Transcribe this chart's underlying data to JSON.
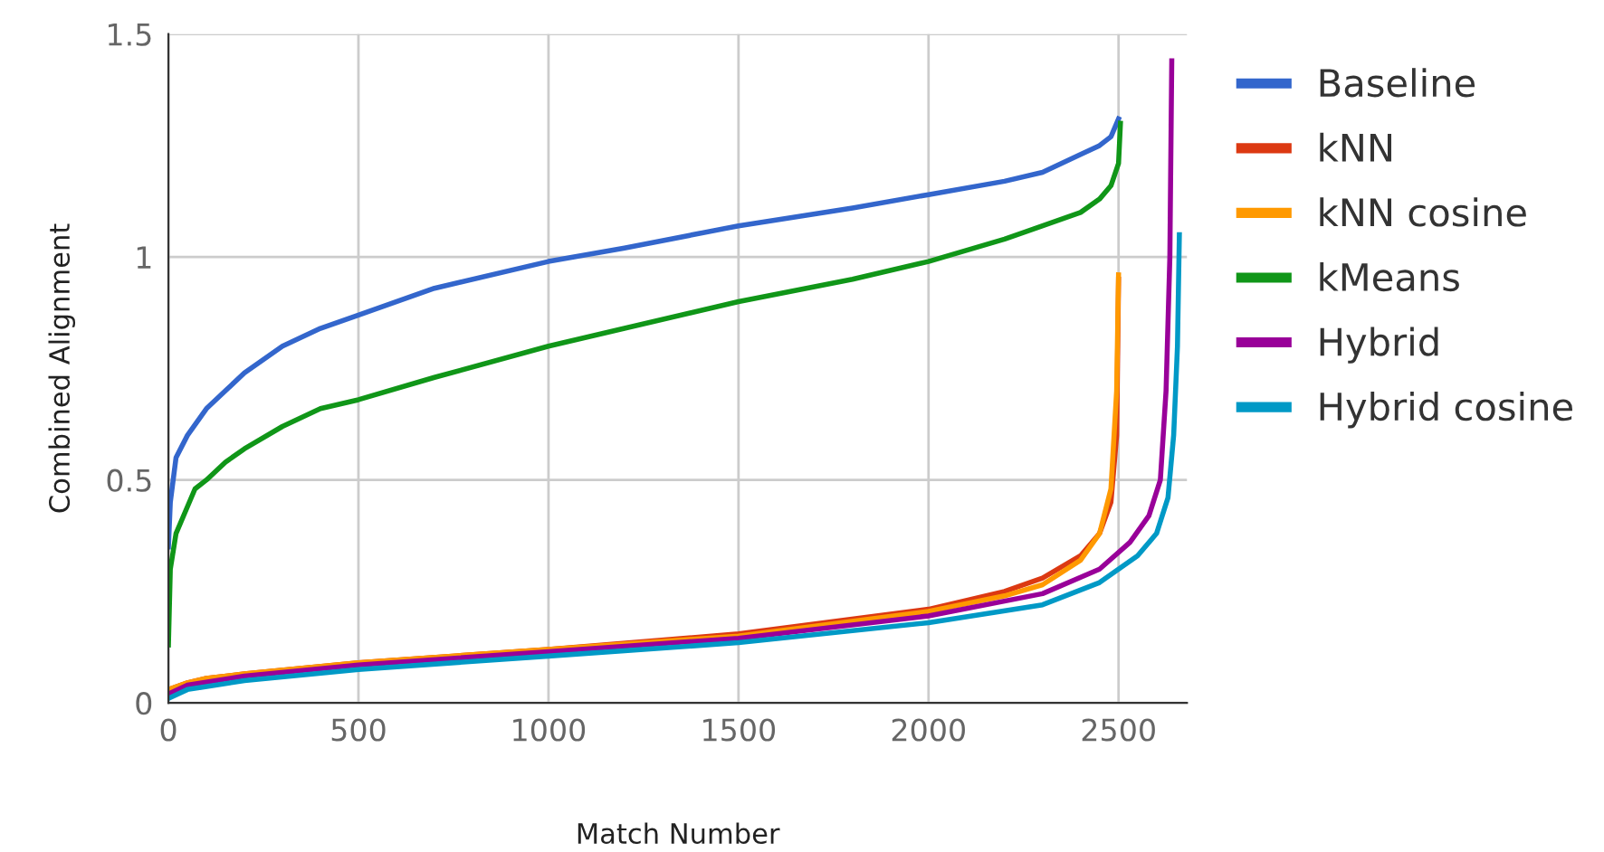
{
  "chart_data": {
    "type": "line",
    "xlabel": "Match Number",
    "ylabel": "Combined Alignment",
    "xlim": [
      0,
      2680
    ],
    "ylim": [
      0,
      1.5
    ],
    "xticks": [
      0,
      500,
      1000,
      1500,
      2000,
      2500
    ],
    "yticks": [
      0,
      0.5,
      1,
      1.5
    ],
    "grid": true,
    "legend": "right",
    "marker": "none",
    "line_style": "solid",
    "series": [
      {
        "name": "Baseline",
        "color": "#3366cc",
        "x": [
          0,
          5,
          20,
          50,
          100,
          150,
          200,
          300,
          400,
          500,
          700,
          1000,
          1200,
          1500,
          1800,
          2000,
          2200,
          2300,
          2400,
          2450,
          2480,
          2500
        ],
        "values": [
          0.35,
          0.45,
          0.55,
          0.6,
          0.66,
          0.7,
          0.74,
          0.8,
          0.84,
          0.87,
          0.93,
          0.99,
          1.02,
          1.07,
          1.11,
          1.14,
          1.17,
          1.19,
          1.23,
          1.25,
          1.27,
          1.31
        ]
      },
      {
        "name": "kNN",
        "color": "#dc3912",
        "x": [
          0,
          50,
          100,
          200,
          500,
          1000,
          1500,
          2000,
          2200,
          2300,
          2400,
          2450,
          2480,
          2495,
          2500
        ],
        "values": [
          0.03,
          0.045,
          0.055,
          0.065,
          0.09,
          0.12,
          0.155,
          0.21,
          0.25,
          0.28,
          0.33,
          0.38,
          0.45,
          0.6,
          0.95
        ]
      },
      {
        "name": "kNN cosine",
        "color": "#ff9900",
        "x": [
          0,
          50,
          100,
          200,
          500,
          1000,
          1500,
          2000,
          2200,
          2300,
          2400,
          2450,
          2480,
          2495,
          2500
        ],
        "values": [
          0.03,
          0.045,
          0.055,
          0.065,
          0.09,
          0.12,
          0.15,
          0.205,
          0.24,
          0.265,
          0.32,
          0.38,
          0.48,
          0.7,
          0.96
        ]
      },
      {
        "name": "kMeans",
        "color": "#109618",
        "x": [
          0,
          5,
          20,
          50,
          70,
          100,
          150,
          200,
          300,
          400,
          500,
          700,
          1000,
          1200,
          1500,
          1800,
          2000,
          2200,
          2400,
          2450,
          2480,
          2500,
          2505
        ],
        "values": [
          0.13,
          0.3,
          0.38,
          0.44,
          0.48,
          0.5,
          0.54,
          0.57,
          0.62,
          0.66,
          0.68,
          0.73,
          0.8,
          0.84,
          0.9,
          0.95,
          0.99,
          1.04,
          1.1,
          1.13,
          1.16,
          1.21,
          1.3
        ]
      },
      {
        "name": "Hybrid",
        "color": "#990099",
        "x": [
          0,
          50,
          200,
          500,
          1000,
          1500,
          2000,
          2300,
          2450,
          2530,
          2580,
          2610,
          2625,
          2635,
          2640
        ],
        "values": [
          0.02,
          0.04,
          0.06,
          0.085,
          0.115,
          0.145,
          0.195,
          0.245,
          0.3,
          0.36,
          0.42,
          0.5,
          0.7,
          1.0,
          1.44
        ]
      },
      {
        "name": "Hybrid cosine",
        "color": "#0099c6",
        "x": [
          0,
          50,
          200,
          500,
          1000,
          1500,
          2000,
          2300,
          2450,
          2550,
          2600,
          2630,
          2645,
          2655,
          2660
        ],
        "values": [
          0.01,
          0.03,
          0.05,
          0.075,
          0.105,
          0.135,
          0.18,
          0.22,
          0.27,
          0.33,
          0.38,
          0.46,
          0.6,
          0.8,
          1.05
        ]
      }
    ]
  }
}
